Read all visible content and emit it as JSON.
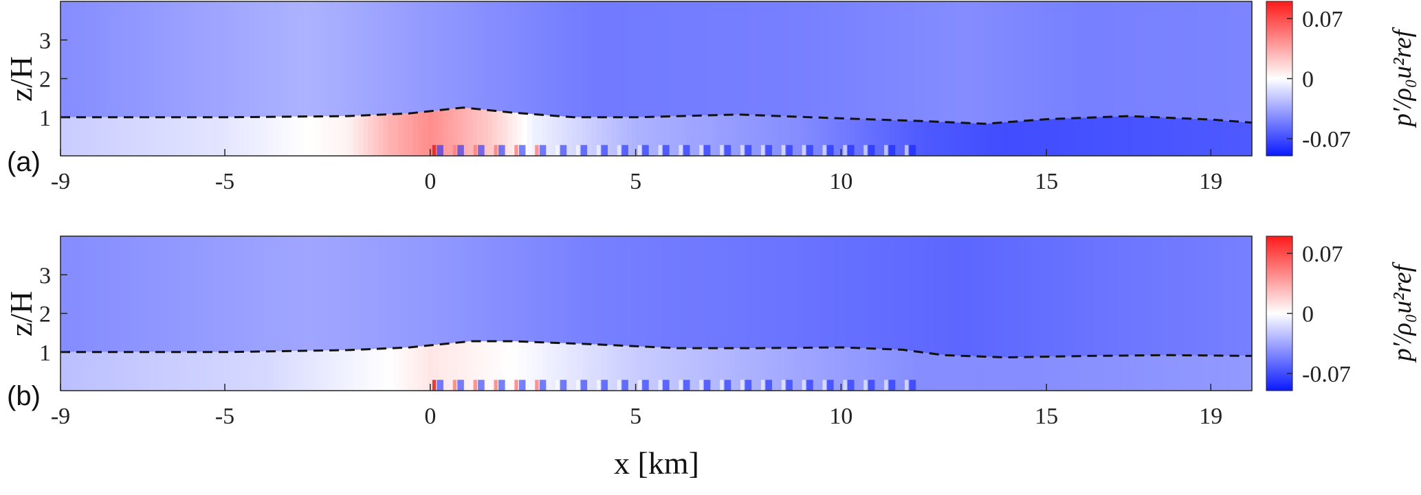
{
  "chart_data": [
    {
      "type": "heatmap",
      "panel_label": "(a)",
      "xlim": [
        -9,
        20
      ],
      "ylim": [
        0,
        4
      ],
      "x_ticks": [
        "-9",
        "-5",
        "0",
        "5",
        "10",
        "15",
        "19"
      ],
      "x_tick_values": [
        -9,
        -5,
        0,
        5,
        10,
        15,
        19
      ],
      "y_ticks": [
        "1",
        "2",
        "3"
      ],
      "y_tick_values": [
        1,
        2,
        3
      ],
      "ylabel": "z/H",
      "xlabel": "",
      "colorbar": {
        "label": "p′/ρ₀u²ref",
        "ticks": [
          "0.07",
          "0",
          "-0.07"
        ],
        "tick_values": [
          0.07,
          0,
          -0.07
        ],
        "range": [
          -0.09,
          0.09
        ],
        "colors": [
          "#0a1aff",
          "#ffffff",
          "#ff1a1a"
        ]
      },
      "series": [
        {
          "type": "line",
          "style": "dashed",
          "x": [
            -9,
            -5,
            -2,
            -0.5,
            0.8,
            2,
            3.5,
            5,
            7.5,
            10,
            12,
            13.5,
            15,
            17,
            19,
            20
          ],
          "y": [
            1.0,
            1.0,
            1.03,
            1.1,
            1.25,
            1.12,
            1.0,
            1.0,
            1.07,
            0.97,
            0.9,
            0.83,
            0.95,
            1.03,
            0.94,
            0.86
          ]
        }
      ],
      "field": {
        "background": [
          {
            "x": -9,
            "v": -0.045
          },
          {
            "x": -3,
            "v": -0.03
          },
          {
            "x": 0,
            "v": -0.04
          },
          {
            "x": 4,
            "v": -0.052
          },
          {
            "x": 9,
            "v": -0.05
          },
          {
            "x": 13,
            "v": -0.045
          },
          {
            "x": 16,
            "v": -0.05
          },
          {
            "x": 20,
            "v": -0.048
          }
        ],
        "layer": [
          {
            "x": -9,
            "v": -0.02
          },
          {
            "x": -5,
            "v": -0.01
          },
          {
            "x": -2,
            "v": 0.005
          },
          {
            "x": -1,
            "v": 0.03
          },
          {
            "x": 0,
            "v": 0.045
          },
          {
            "x": 1.5,
            "v": 0.02
          },
          {
            "x": 2.5,
            "v": -0.005
          },
          {
            "x": 5,
            "v": -0.03
          },
          {
            "x": 9,
            "v": -0.045
          },
          {
            "x": 12,
            "v": -0.065
          },
          {
            "x": 14,
            "v": -0.07
          },
          {
            "x": 20,
            "v": -0.065
          }
        ],
        "vortex_range": [
          0,
          12
        ],
        "vortex_spacing": 0.5
      }
    },
    {
      "type": "heatmap",
      "panel_label": "(b)",
      "xlim": [
        -9,
        20
      ],
      "ylim": [
        0,
        4
      ],
      "x_ticks": [
        "-9",
        "-5",
        "0",
        "5",
        "10",
        "15",
        "19"
      ],
      "x_tick_values": [
        -9,
        -5,
        0,
        5,
        10,
        15,
        19
      ],
      "y_ticks": [
        "1",
        "2",
        "3"
      ],
      "y_tick_values": [
        1,
        2,
        3
      ],
      "ylabel": "z/H",
      "xlabel": "x [km]",
      "colorbar": {
        "label": "p′/ρ₀u²ref",
        "ticks": [
          "0.07",
          "0",
          "-0.07"
        ],
        "tick_values": [
          0.07,
          0,
          -0.07
        ],
        "range": [
          -0.09,
          0.09
        ],
        "colors": [
          "#0a1aff",
          "#ffffff",
          "#ff1a1a"
        ]
      },
      "series": [
        {
          "type": "line",
          "style": "dashed",
          "x": [
            -9,
            -5,
            -2,
            -0.5,
            1,
            2,
            4,
            6,
            8,
            10,
            11.5,
            12.5,
            14,
            16,
            18,
            20
          ],
          "y": [
            1.0,
            1.0,
            1.05,
            1.12,
            1.28,
            1.28,
            1.2,
            1.1,
            1.1,
            1.12,
            1.06,
            0.92,
            0.86,
            0.9,
            0.92,
            0.9
          ]
        }
      ],
      "field": {
        "background": [
          {
            "x": -9,
            "v": -0.045
          },
          {
            "x": -3,
            "v": -0.035
          },
          {
            "x": 0,
            "v": -0.04
          },
          {
            "x": 4,
            "v": -0.05
          },
          {
            "x": 9,
            "v": -0.055
          },
          {
            "x": 13,
            "v": -0.06
          },
          {
            "x": 16,
            "v": -0.055
          },
          {
            "x": 20,
            "v": -0.05
          }
        ],
        "layer": [
          {
            "x": -9,
            "v": -0.025
          },
          {
            "x": -4,
            "v": -0.015
          },
          {
            "x": -1,
            "v": 0.0
          },
          {
            "x": 0,
            "v": 0.01
          },
          {
            "x": 2,
            "v": 0.0
          },
          {
            "x": 5,
            "v": -0.02
          },
          {
            "x": 9,
            "v": -0.035
          },
          {
            "x": 12,
            "v": -0.045
          },
          {
            "x": 14,
            "v": -0.045
          },
          {
            "x": 20,
            "v": -0.04
          }
        ],
        "vortex_range": [
          0,
          12
        ],
        "vortex_spacing": 0.5
      }
    }
  ]
}
